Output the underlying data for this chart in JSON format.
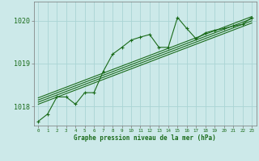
{
  "bg_color": "#cce9e9",
  "grid_color": "#aad4d4",
  "line_color": "#1a6b1a",
  "ylabel_values": [
    1018,
    1019,
    1020
  ],
  "xlim": [
    -0.5,
    23.5
  ],
  "ylim": [
    1017.55,
    1020.45
  ],
  "xlabel": "Graphe pression niveau de la mer (hPa)",
  "xticks": [
    0,
    1,
    2,
    3,
    4,
    5,
    6,
    7,
    8,
    9,
    10,
    11,
    12,
    13,
    14,
    15,
    16,
    17,
    18,
    19,
    20,
    21,
    22,
    23
  ],
  "main_line": [
    [
      0,
      1017.65
    ],
    [
      1,
      1017.82
    ],
    [
      2,
      1018.22
    ],
    [
      3,
      1018.22
    ],
    [
      4,
      1018.05
    ],
    [
      5,
      1018.32
    ],
    [
      6,
      1018.32
    ],
    [
      7,
      1018.82
    ],
    [
      8,
      1019.22
    ],
    [
      9,
      1019.38
    ],
    [
      10,
      1019.55
    ],
    [
      11,
      1019.62
    ],
    [
      12,
      1019.68
    ],
    [
      13,
      1019.38
    ],
    [
      14,
      1019.38
    ],
    [
      15,
      1020.08
    ],
    [
      16,
      1019.82
    ],
    [
      17,
      1019.58
    ],
    [
      18,
      1019.72
    ],
    [
      19,
      1019.78
    ],
    [
      20,
      1019.82
    ],
    [
      21,
      1019.88
    ],
    [
      22,
      1019.92
    ],
    [
      23,
      1020.08
    ]
  ],
  "trend_lines": [
    [
      [
        0,
        1018.05
      ],
      [
        23,
        1019.95
      ]
    ],
    [
      [
        0,
        1018.1
      ],
      [
        23,
        1020.0
      ]
    ],
    [
      [
        0,
        1018.15
      ],
      [
        23,
        1020.05
      ]
    ],
    [
      [
        0,
        1018.2
      ],
      [
        23,
        1020.1
      ]
    ]
  ]
}
